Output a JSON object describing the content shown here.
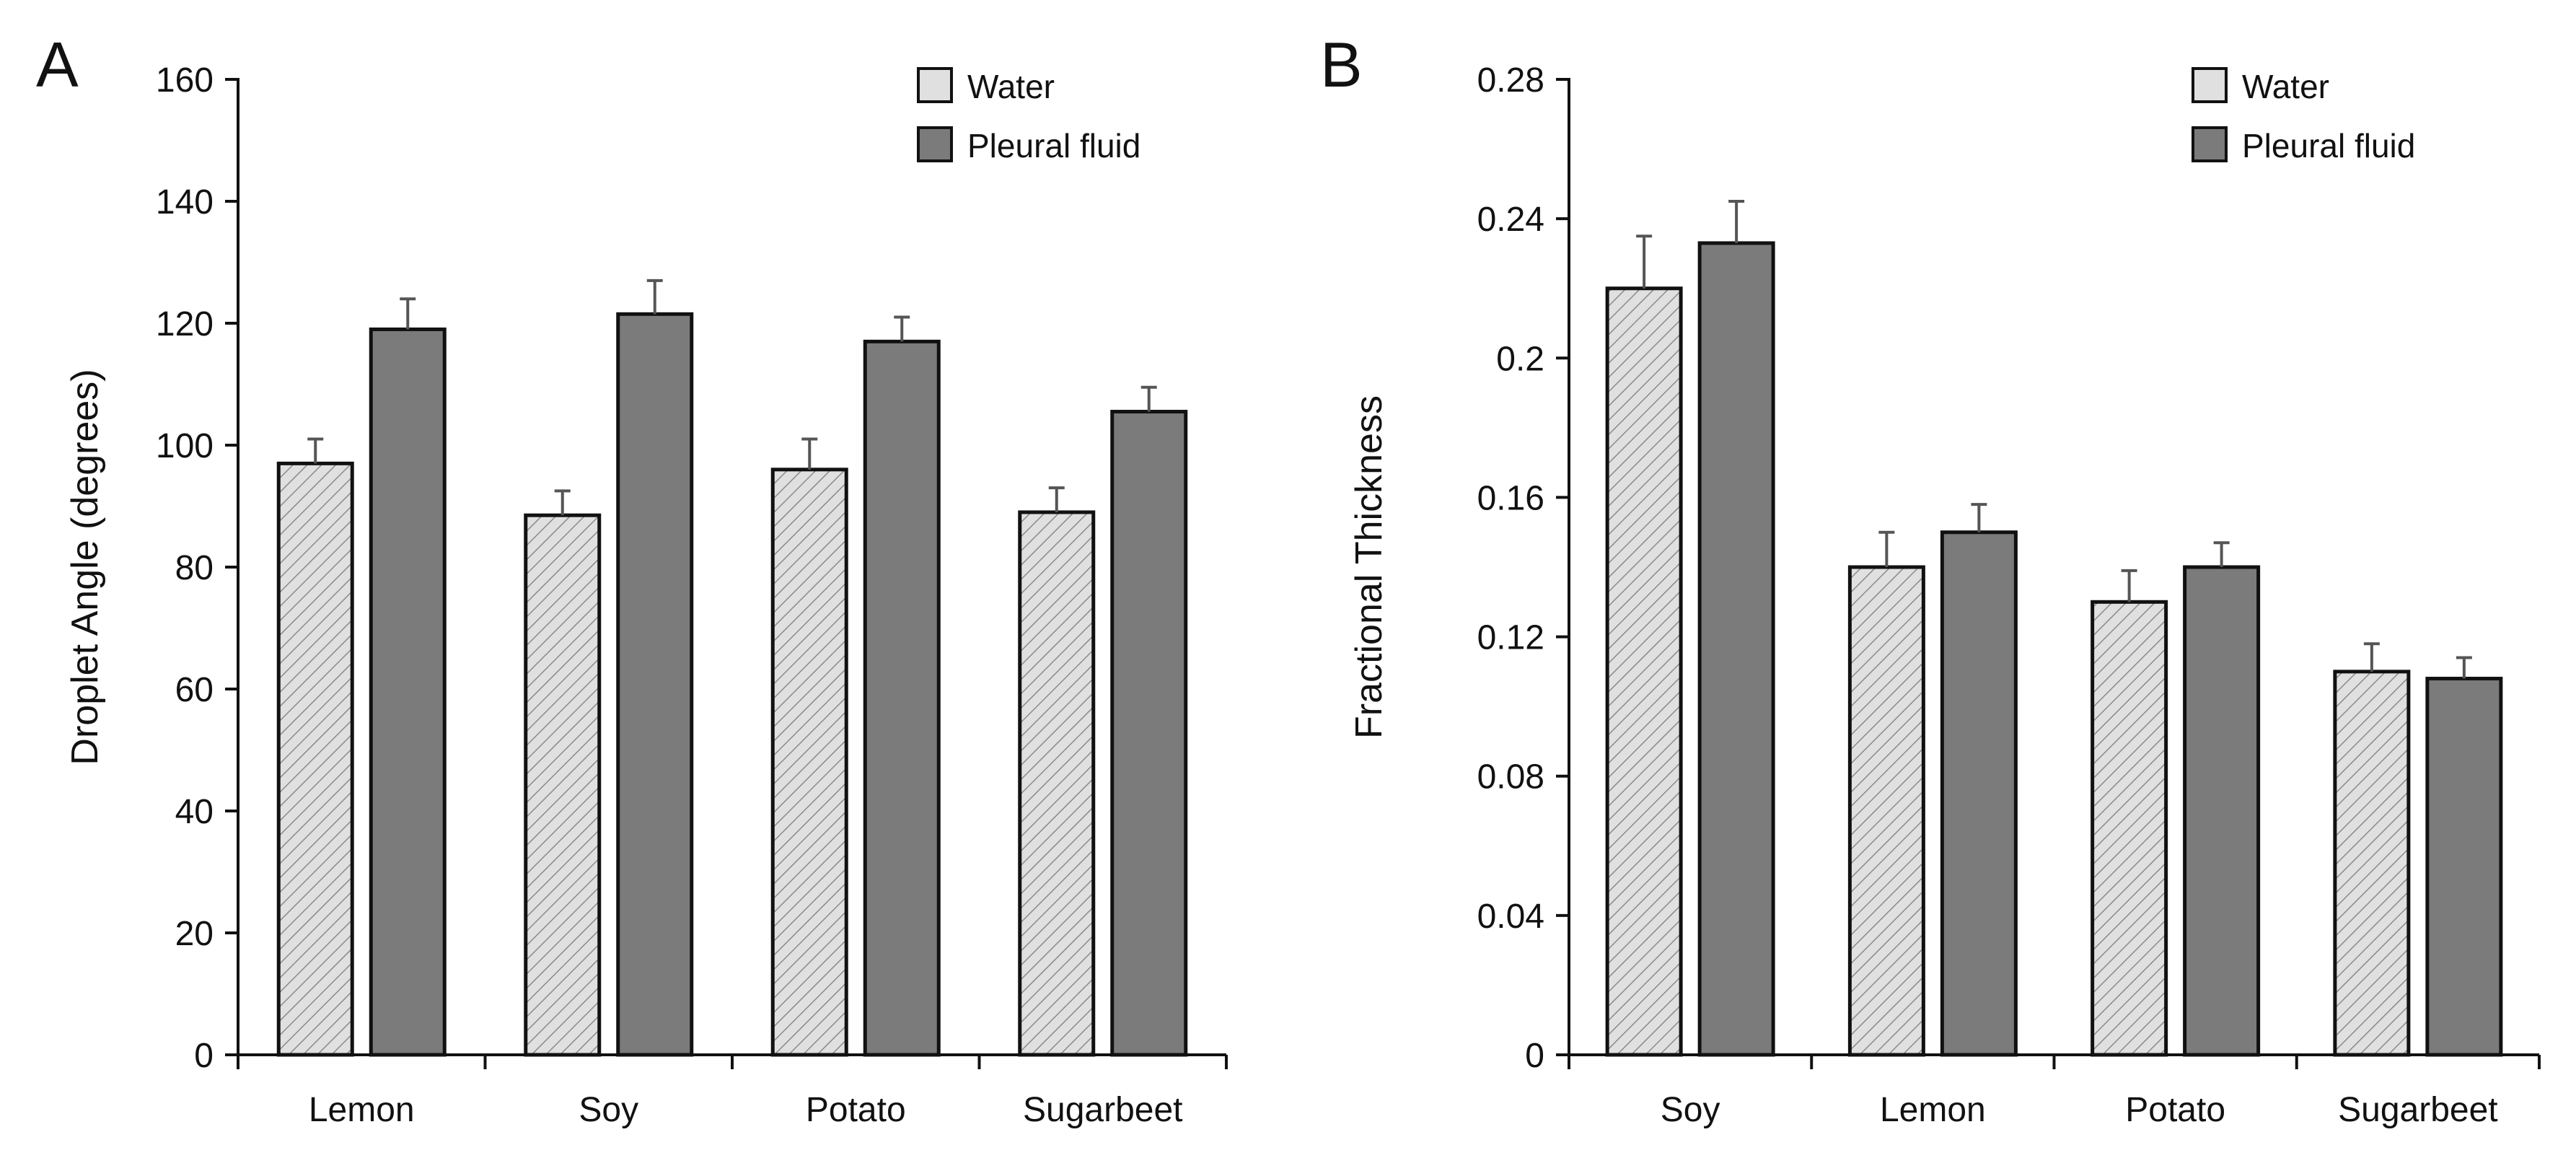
{
  "colors": {
    "water_fill": "#e0e0e0",
    "water_hatch": "#8a8a8a",
    "pleural_fill": "#7b7b7b",
    "outline": "#111111",
    "error_bar": "#555555",
    "background": "#ffffff"
  },
  "chart_data": [
    {
      "type": "bar",
      "panel_label": "A",
      "title": "",
      "xlabel": "",
      "ylabel": "Droplet Angle (degrees)",
      "categories": [
        "Lemon",
        "Soy",
        "Potato",
        "Sugarbeet"
      ],
      "ylim": [
        0,
        160
      ],
      "yticks": [
        0,
        20,
        40,
        60,
        80,
        100,
        120,
        140,
        160
      ],
      "ytick_labels": [
        "0",
        "20",
        "40",
        "60",
        "80",
        "100",
        "120",
        "140",
        "160"
      ],
      "grid": false,
      "legend_position": "top-right",
      "series": [
        {
          "name": "Water",
          "style": "hatched",
          "values": [
            97,
            88.5,
            96,
            89
          ],
          "errors": [
            4,
            4,
            5,
            4
          ]
        },
        {
          "name": "Pleural fluid",
          "style": "solid",
          "values": [
            119,
            121.5,
            117,
            105.5
          ],
          "errors": [
            5,
            5.5,
            4,
            4
          ]
        }
      ]
    },
    {
      "type": "bar",
      "panel_label": "B",
      "title": "",
      "xlabel": "",
      "ylabel": "Fractional Thickness",
      "categories": [
        "Soy",
        "Lemon",
        "Potato",
        "Sugarbeet"
      ],
      "ylim": [
        0,
        0.28
      ],
      "yticks": [
        0,
        0.04,
        0.08,
        0.12,
        0.16,
        0.2,
        0.24,
        0.28
      ],
      "ytick_labels": [
        "0",
        "0.04",
        "0.08",
        "0.12",
        "0.16",
        "0.2",
        "0.24",
        "0.28"
      ],
      "grid": false,
      "legend_position": "top-right",
      "series": [
        {
          "name": "Water",
          "style": "hatched",
          "values": [
            0.22,
            0.14,
            0.13,
            0.11
          ],
          "errors": [
            0.015,
            0.01,
            0.009,
            0.008
          ]
        },
        {
          "name": "Pleural fluid",
          "style": "solid",
          "values": [
            0.233,
            0.15,
            0.14,
            0.108
          ],
          "errors": [
            0.012,
            0.008,
            0.007,
            0.006
          ]
        }
      ]
    }
  ]
}
